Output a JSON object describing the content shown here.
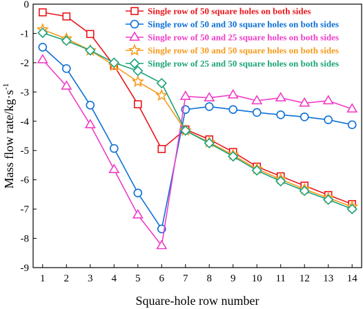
{
  "chart_data": {
    "type": "line",
    "title": "",
    "xlabel": "Square-hole row number",
    "ylabel": "Mass flow rate/kg·s",
    "ylabel_sup": "-1",
    "xlim": [
      0.6,
      14.4
    ],
    "ylim": [
      -9,
      0
    ],
    "x": [
      1,
      2,
      3,
      4,
      5,
      6,
      7,
      8,
      9,
      10,
      11,
      12,
      13,
      14
    ],
    "xticks": [
      "1",
      "2",
      "3",
      "4",
      "5",
      "6",
      "7",
      "8",
      "9",
      "10",
      "11",
      "12",
      "13",
      "14"
    ],
    "yticks": [
      "0",
      "-1",
      "-2",
      "-3",
      "-4",
      "-5",
      "-6",
      "-7",
      "-8",
      "-9"
    ],
    "legend_position": "top-right",
    "series": [
      {
        "name": "Single row of 50 square holes on both sides",
        "color": "#e8141b",
        "marker": "square",
        "values": [
          -0.28,
          -0.42,
          -1.02,
          -2.1,
          -3.42,
          -4.95,
          -4.28,
          -4.62,
          -5.05,
          -5.55,
          -5.88,
          -6.2,
          -6.52,
          -6.83
        ]
      },
      {
        "name": "Single row of 50 and 30 square holes on both sides",
        "color": "#0b6fd6",
        "marker": "circle",
        "values": [
          -1.47,
          -2.2,
          -3.45,
          -4.93,
          -6.45,
          -7.68,
          -3.6,
          -3.5,
          -3.6,
          -3.7,
          -3.78,
          -3.85,
          -3.95,
          -4.12
        ]
      },
      {
        "name": "Single row of 50 and 25 square holes on both sides",
        "color": "#f03cc8",
        "marker": "triangle",
        "values": [
          -1.9,
          -2.8,
          -4.12,
          -5.65,
          -7.2,
          -8.25,
          -3.15,
          -3.2,
          -3.1,
          -3.3,
          -3.2,
          -3.38,
          -3.3,
          -3.58
        ]
      },
      {
        "name": "Single row of 30 and 50 square holes on both sides",
        "color": "#f79a1c",
        "marker": "star",
        "values": [
          -0.87,
          -1.18,
          -1.58,
          -2.1,
          -2.65,
          -3.12,
          -4.32,
          -4.72,
          -5.15,
          -5.63,
          -5.98,
          -6.32,
          -6.62,
          -6.92
        ]
      },
      {
        "name": "Single row of 25 and 50 square holes on both sides",
        "color": "#1aa37a",
        "marker": "diamond",
        "values": [
          -0.98,
          -1.25,
          -1.58,
          -2.0,
          -2.28,
          -2.7,
          -4.32,
          -4.75,
          -5.2,
          -5.68,
          -6.05,
          -6.38,
          -6.68,
          -7.0
        ]
      }
    ]
  }
}
